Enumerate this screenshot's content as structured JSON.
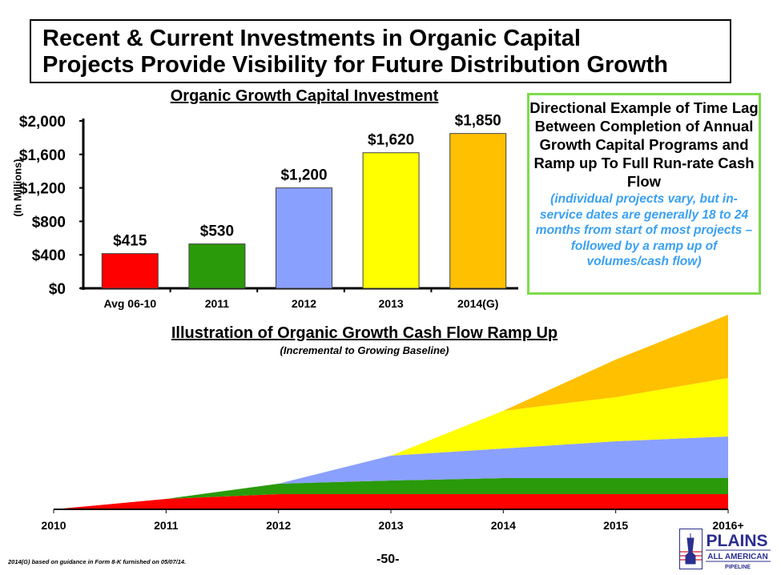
{
  "slide": {
    "title_line1": "Recent & Current Investments in Organic Capital",
    "title_line2": "Projects Provide Visibility for Future Distribution Growth",
    "footnote": "2014(G) based on guidance in Form 8-K furnished on 05/07/14.",
    "page_number": "-50-",
    "logo": {
      "line1": "PLAINS",
      "line2": "ALL AMERICAN",
      "line3": "PIPELINE"
    }
  },
  "side_box": {
    "heading": "Directional Example of Time Lag Between Completion of Annual Growth Capital Programs and Ramp up To Full Run-rate Cash Flow",
    "note": "(individual projects vary, but in-service dates are generally 18 to 24 months from start of most projects – followed by a ramp up of volumes/cash flow)",
    "border_color": "#7ddc4c",
    "note_color": "#3aa0f0"
  },
  "chart_data": [
    {
      "type": "bar",
      "title": "Organic Growth Capital Investment",
      "ylabel": "(In Millions)",
      "categories": [
        "Avg 06-10",
        "2011",
        "2012",
        "2013",
        "2014(G)"
      ],
      "values": [
        415,
        530,
        1200,
        1620,
        1850
      ],
      "data_labels": [
        "$415",
        "$530",
        "$1,200",
        "$1,620",
        "$1,850"
      ],
      "colors": [
        "#ff0000",
        "#2a9a0a",
        "#8aa0ff",
        "#ffff00",
        "#ffc000"
      ],
      "yticks": [
        0,
        400,
        800,
        1200,
        1600,
        2000
      ],
      "ytick_labels": [
        "$0",
        "$400",
        "$800",
        "$1,200",
        "$1,600",
        "$2,000"
      ],
      "ylim": [
        0,
        2000
      ],
      "grid": false
    },
    {
      "type": "area",
      "stacked": true,
      "title": "Illustration of Organic Growth Cash Flow Ramp Up",
      "subtitle": "(Incremental to Growing Baseline)",
      "categories": [
        "2010",
        "2011",
        "2012",
        "2013",
        "2014",
        "2015",
        "2016+"
      ],
      "y_axis_shown": false,
      "series": [
        {
          "color": "#ff0000",
          "values": [
            0,
            13,
            19,
            19,
            19,
            19,
            19
          ]
        },
        {
          "color": "#2a9a0a",
          "values": [
            0,
            0,
            13,
            17,
            20,
            20,
            20
          ]
        },
        {
          "color": "#8aa0ff",
          "values": [
            0,
            0,
            0,
            31,
            37,
            46,
            52
          ]
        },
        {
          "color": "#ffff00",
          "values": [
            0,
            0,
            0,
            0,
            47,
            55,
            73
          ]
        },
        {
          "color": "#ffc000",
          "values": [
            0,
            0,
            0,
            0,
            0,
            47,
            79
          ]
        }
      ]
    }
  ]
}
